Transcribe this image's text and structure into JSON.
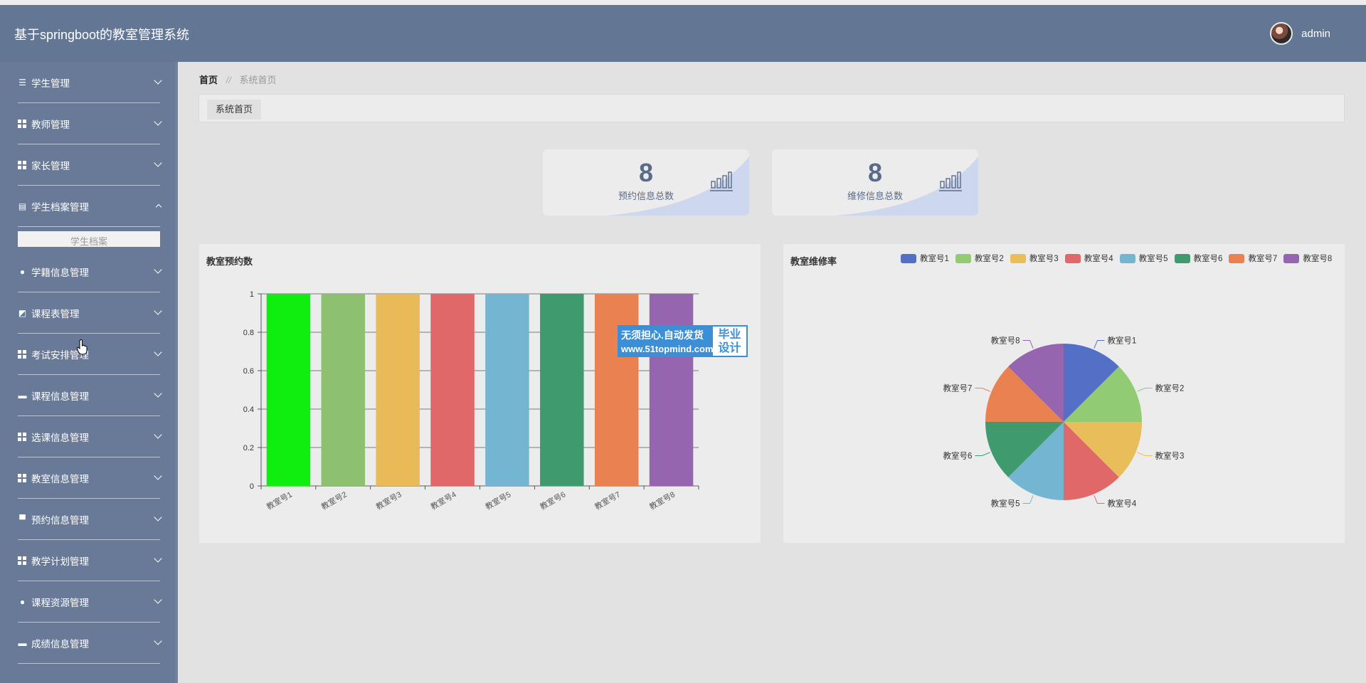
{
  "header": {
    "title": "基于springboot的教室管理系统",
    "username": "admin"
  },
  "sidebar": {
    "items": [
      {
        "label": "学生管理",
        "icon": "list-icon",
        "expanded": false
      },
      {
        "label": "教师管理",
        "icon": "grid-icon",
        "expanded": false
      },
      {
        "label": "家长管理",
        "icon": "grid-icon",
        "expanded": false
      },
      {
        "label": "学生档案管理",
        "icon": "clipboard-icon",
        "expanded": true,
        "children": [
          "学生档案"
        ]
      },
      {
        "label": "学籍信息管理",
        "icon": "bulb-icon",
        "expanded": false
      },
      {
        "label": "课程表管理",
        "icon": "chart-icon",
        "expanded": false
      },
      {
        "label": "考试安排管理",
        "icon": "grid-icon",
        "expanded": false
      },
      {
        "label": "课程信息管理",
        "icon": "tray-icon",
        "expanded": false
      },
      {
        "label": "选课信息管理",
        "icon": "grid-icon",
        "expanded": false
      },
      {
        "label": "教室信息管理",
        "icon": "grid-icon",
        "expanded": false
      },
      {
        "label": "预约信息管理",
        "icon": "card-icon",
        "expanded": false
      },
      {
        "label": "教学计划管理",
        "icon": "grid-icon",
        "expanded": false
      },
      {
        "label": "课程资源管理",
        "icon": "user-icon",
        "expanded": false
      },
      {
        "label": "成绩信息管理",
        "icon": "chat-icon",
        "expanded": false
      }
    ]
  },
  "breadcrumb": {
    "home": "首页",
    "separator": "//",
    "current": "系统首页"
  },
  "tabs": {
    "active": "系统首页"
  },
  "stats": [
    {
      "value": "8",
      "label": "预约信息总数"
    },
    {
      "value": "8",
      "label": "维修信息总数"
    }
  ],
  "watermark": {
    "line1": "无须担心.自动发货",
    "line2": "www.51topmind.com",
    "right1": "毕业",
    "right2": "设计"
  },
  "colors": {
    "header": "#637693",
    "sidebar": "#687a98",
    "accent": "#5a6b88"
  },
  "chart_data": [
    {
      "type": "bar",
      "title": "教室预约数",
      "categories": [
        "教室号1",
        "教室号2",
        "教室号3",
        "教室号4",
        "教室号5",
        "教室号6",
        "教室号7",
        "教室号8"
      ],
      "values": [
        1,
        1,
        1,
        1,
        1,
        1,
        1,
        1
      ],
      "colors": [
        "#10ee10",
        "#8dc06f",
        "#e8ba58",
        "#e06868",
        "#74b5d2",
        "#3f9b6e",
        "#ea8151",
        "#9665b0"
      ],
      "ylim": [
        0,
        1
      ],
      "yticks": [
        "0",
        "0.2",
        "0.4",
        "0.6",
        "0.8",
        "1"
      ],
      "grid": true
    },
    {
      "type": "pie",
      "title": "教室维修率",
      "labels": [
        "教室号1",
        "教室号2",
        "教室号3",
        "教室号4",
        "教室号5",
        "教室号6",
        "教室号7",
        "教室号8"
      ],
      "values": [
        1,
        1,
        1,
        1,
        1,
        1,
        1,
        1
      ],
      "colors": [
        "#5470c6",
        "#91cc75",
        "#e9bd5a",
        "#e06868",
        "#74b5d2",
        "#3f9b6e",
        "#ea8151",
        "#9665b0"
      ],
      "legend": "top"
    }
  ]
}
